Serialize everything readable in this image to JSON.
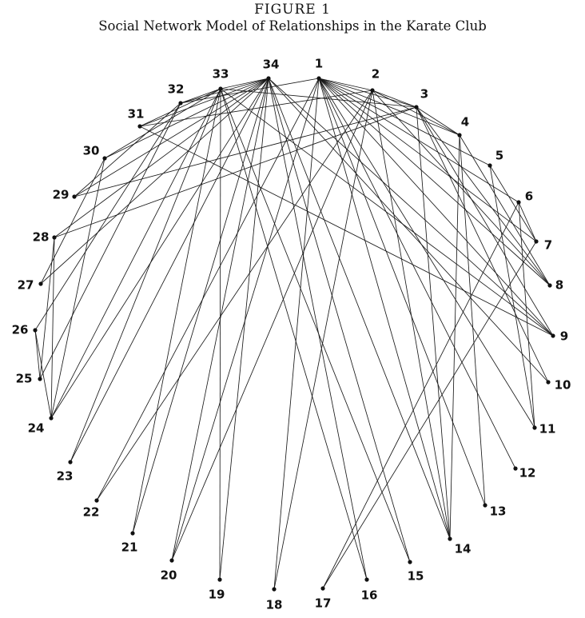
{
  "header": {
    "figure_number": "FIGURE 1",
    "title": "Social Network Model of Relationships in the Karate Club"
  },
  "network": {
    "nodes": [
      "1",
      "2",
      "3",
      "4",
      "5",
      "6",
      "7",
      "8",
      "9",
      "10",
      "11",
      "12",
      "13",
      "14",
      "15",
      "16",
      "17",
      "18",
      "19",
      "20",
      "21",
      "22",
      "23",
      "24",
      "25",
      "26",
      "27",
      "28",
      "29",
      "30",
      "31",
      "32",
      "33",
      "34"
    ],
    "edges": [
      [
        "1",
        "2"
      ],
      [
        "1",
        "3"
      ],
      [
        "1",
        "4"
      ],
      [
        "1",
        "5"
      ],
      [
        "1",
        "6"
      ],
      [
        "1",
        "7"
      ],
      [
        "1",
        "8"
      ],
      [
        "1",
        "9"
      ],
      [
        "1",
        "11"
      ],
      [
        "1",
        "12"
      ],
      [
        "1",
        "13"
      ],
      [
        "1",
        "14"
      ],
      [
        "1",
        "18"
      ],
      [
        "1",
        "20"
      ],
      [
        "1",
        "22"
      ],
      [
        "1",
        "32"
      ],
      [
        "2",
        "3"
      ],
      [
        "2",
        "4"
      ],
      [
        "2",
        "8"
      ],
      [
        "2",
        "14"
      ],
      [
        "2",
        "18"
      ],
      [
        "2",
        "20"
      ],
      [
        "2",
        "22"
      ],
      [
        "2",
        "31"
      ],
      [
        "3",
        "4"
      ],
      [
        "3",
        "8"
      ],
      [
        "3",
        "9"
      ],
      [
        "3",
        "10"
      ],
      [
        "3",
        "14"
      ],
      [
        "3",
        "28"
      ],
      [
        "3",
        "29"
      ],
      [
        "3",
        "33"
      ],
      [
        "4",
        "8"
      ],
      [
        "4",
        "13"
      ],
      [
        "4",
        "14"
      ],
      [
        "5",
        "7"
      ],
      [
        "5",
        "11"
      ],
      [
        "6",
        "7"
      ],
      [
        "6",
        "11"
      ],
      [
        "6",
        "17"
      ],
      [
        "7",
        "17"
      ],
      [
        "9",
        "31"
      ],
      [
        "9",
        "33"
      ],
      [
        "9",
        "34"
      ],
      [
        "10",
        "34"
      ],
      [
        "14",
        "34"
      ],
      [
        "15",
        "33"
      ],
      [
        "15",
        "34"
      ],
      [
        "16",
        "33"
      ],
      [
        "16",
        "34"
      ],
      [
        "19",
        "33"
      ],
      [
        "19",
        "34"
      ],
      [
        "20",
        "34"
      ],
      [
        "21",
        "33"
      ],
      [
        "21",
        "34"
      ],
      [
        "23",
        "33"
      ],
      [
        "23",
        "34"
      ],
      [
        "24",
        "26"
      ],
      [
        "24",
        "28"
      ],
      [
        "24",
        "30"
      ],
      [
        "24",
        "33"
      ],
      [
        "24",
        "34"
      ],
      [
        "25",
        "26"
      ],
      [
        "25",
        "28"
      ],
      [
        "25",
        "32"
      ],
      [
        "26",
        "32"
      ],
      [
        "27",
        "30"
      ],
      [
        "27",
        "34"
      ],
      [
        "28",
        "34"
      ],
      [
        "29",
        "32"
      ],
      [
        "29",
        "34"
      ],
      [
        "30",
        "33"
      ],
      [
        "30",
        "34"
      ],
      [
        "31",
        "33"
      ],
      [
        "31",
        "34"
      ],
      [
        "32",
        "33"
      ],
      [
        "32",
        "34"
      ],
      [
        "33",
        "34"
      ]
    ]
  }
}
